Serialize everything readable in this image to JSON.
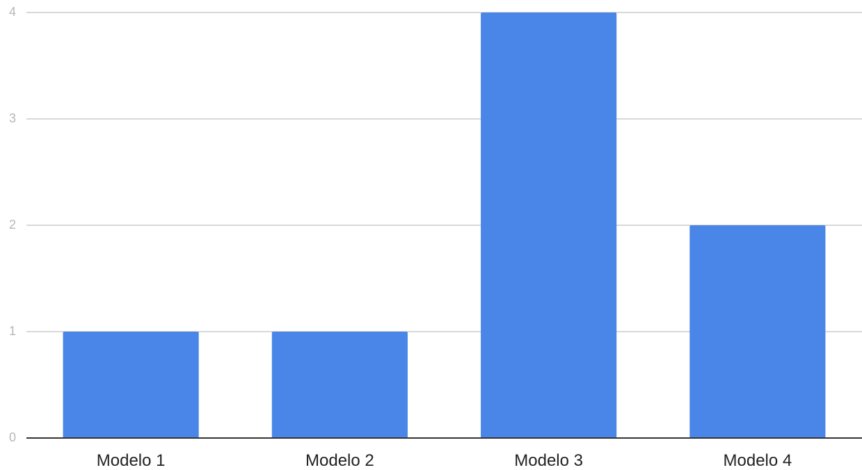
{
  "chart_data": {
    "type": "bar",
    "categories": [
      "Modelo 1",
      "Modelo 2",
      "Modelo 3",
      "Modelo 4"
    ],
    "values": [
      1,
      1,
      4,
      2
    ],
    "title": "",
    "xlabel": "",
    "ylabel": "",
    "ylim": [
      0,
      4
    ],
    "yticks": [
      0,
      1,
      2,
      3,
      4
    ],
    "grid": true,
    "legend": "none",
    "bar_color": "#4a86e8",
    "gridline_color": "#cccccc",
    "axis_color": "#333333"
  }
}
